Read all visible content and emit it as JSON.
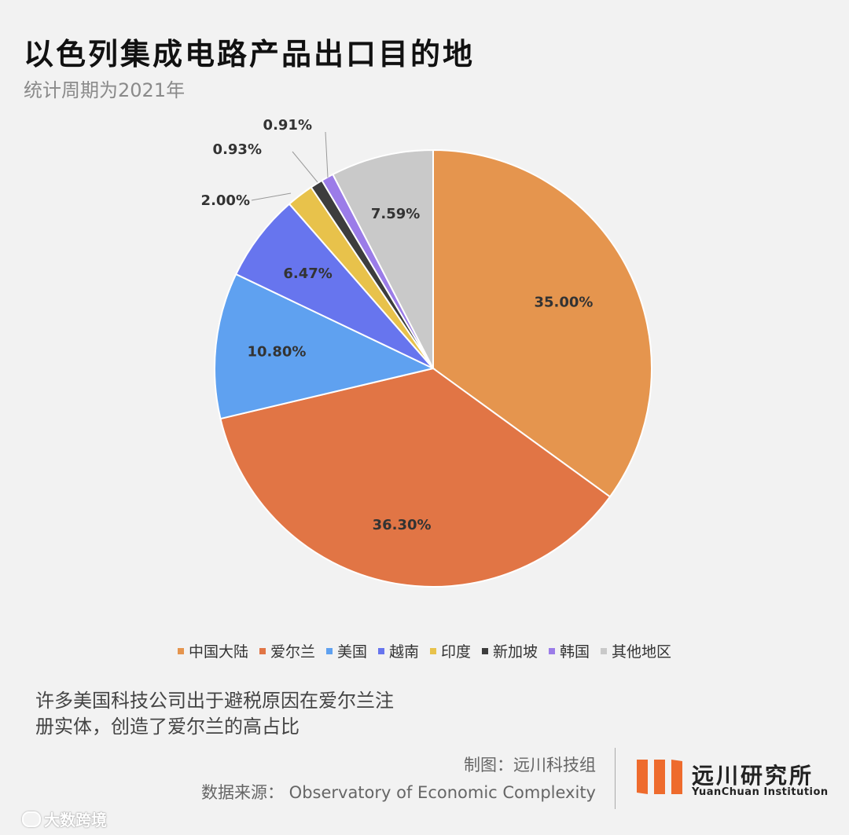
{
  "header": {
    "title": "以色列集成电路产品出口目的地",
    "subtitle": "统计周期为2021年"
  },
  "chart_data": {
    "type": "pie",
    "title": "以色列集成电路产品出口目的地",
    "categories": [
      "中国大陆",
      "爱尔兰",
      "美国",
      "越南",
      "印度",
      "新加坡",
      "韩国",
      "其他地区"
    ],
    "values": [
      35.0,
      36.3,
      10.8,
      6.47,
      2.0,
      0.93,
      0.91,
      7.59
    ],
    "labels": [
      "35.00%",
      "36.30%",
      "10.80%",
      "6.47%",
      "2.00%",
      "0.93%",
      "0.91%",
      "7.59%"
    ],
    "colors": [
      "#e5954e",
      "#e17545",
      "#5fa1f0",
      "#6775ee",
      "#e8c24b",
      "#3d3d3d",
      "#9b7ce8",
      "#c9c9c9"
    ],
    "legend_position": "bottom",
    "start_angle_deg": 0,
    "direction": "clockwise"
  },
  "note": {
    "line1": "许多美国科技公司出于避税原因在爱尔兰注",
    "line2": "册实体，创造了爱尔兰的高占比"
  },
  "footer": {
    "credit": "制图：远川科技组",
    "source": "数据来源： Observatory of Economic Complexity",
    "logo_cn": "远川研究所",
    "logo_en": "YuanChuan Institution",
    "watermark": "大数跨境"
  }
}
